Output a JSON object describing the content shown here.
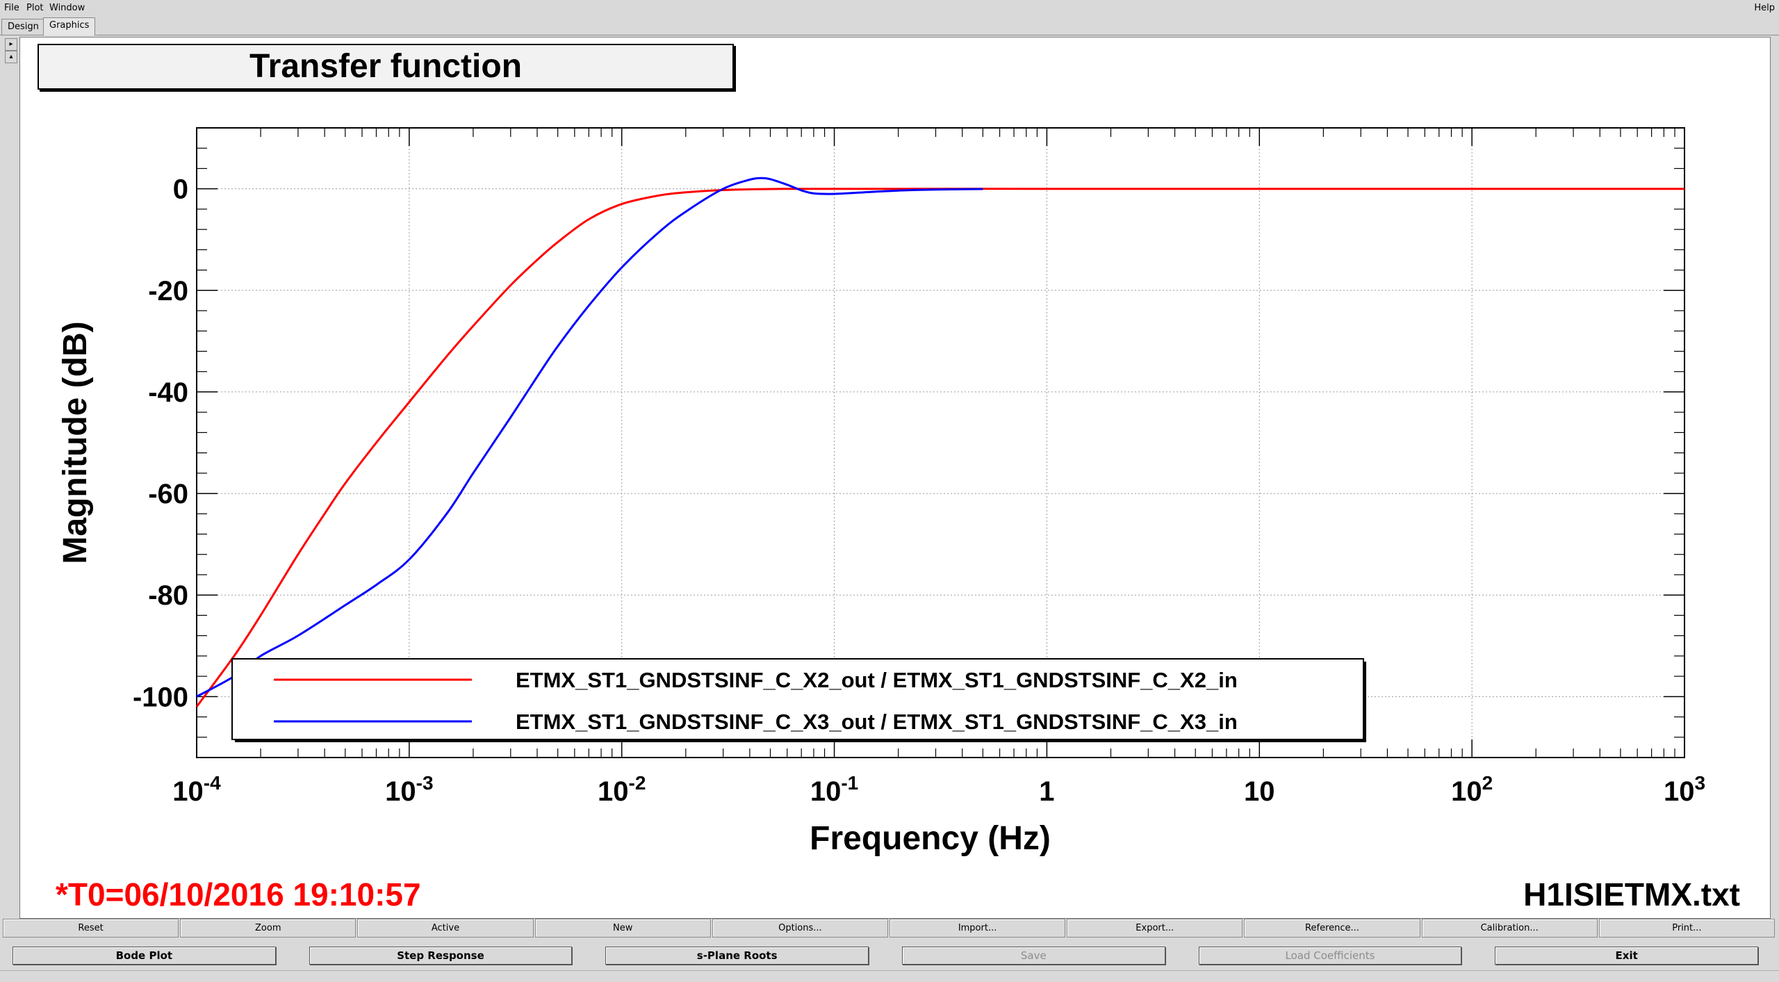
{
  "menu": {
    "file": "File",
    "plot": "Plot",
    "window": "Window",
    "help": "Help"
  },
  "tabs": [
    "Design",
    "Graphics"
  ],
  "active_tab": "Graphics",
  "footer": {
    "t0": "*T0=06/10/2016 19:10:57",
    "filename": "H1ISIETMX.txt"
  },
  "buttons_row1": [
    "Reset",
    "Zoom",
    "Active",
    "New",
    "Options...",
    "Import...",
    "Export...",
    "Reference...",
    "Calibration...",
    "Print..."
  ],
  "buttons_row2": [
    {
      "label": "Bode Plot",
      "enabled": true
    },
    {
      "label": "Step Response",
      "enabled": true
    },
    {
      "label": "s-Plane Roots",
      "enabled": true
    },
    {
      "label": "Save",
      "enabled": false
    },
    {
      "label": "Load Coefficients",
      "enabled": false
    },
    {
      "label": "Exit",
      "enabled": true
    }
  ],
  "chart_data": {
    "type": "line",
    "title": "Transfer function",
    "xlabel": "Frequency (Hz)",
    "ylabel": "Magnitude (dB)",
    "xscale": "log",
    "xlim": [
      0.0001,
      1000
    ],
    "ylim": [
      -112,
      12
    ],
    "x_ticks": [
      {
        "value": 0.0001,
        "base": "10",
        "exp": "-4"
      },
      {
        "value": 0.001,
        "base": "10",
        "exp": "-3"
      },
      {
        "value": 0.01,
        "base": "10",
        "exp": "-2"
      },
      {
        "value": 0.1,
        "base": "10",
        "exp": "-1"
      },
      {
        "value": 1,
        "base": "1",
        "exp": ""
      },
      {
        "value": 10,
        "base": "10",
        "exp": ""
      },
      {
        "value": 100,
        "base": "10",
        "exp": "2"
      },
      {
        "value": 1000,
        "base": "10",
        "exp": "3"
      }
    ],
    "y_ticks": [
      0,
      -20,
      -40,
      -60,
      -80,
      -100
    ],
    "grid": true,
    "legend_position": "bottom-left",
    "series": [
      {
        "name": "ETMX_ST1_GNDSTSINF_C_X2_out / ETMX_ST1_GNDSTSINF_C_X2_in",
        "color": "#ff0000",
        "x": [
          0.0001,
          0.00015,
          0.0002,
          0.0003,
          0.0004,
          0.0005,
          0.0007,
          0.001,
          0.0015,
          0.002,
          0.003,
          0.004,
          0.005,
          0.007,
          0.01,
          0.015,
          0.02,
          0.03,
          0.05,
          0.1,
          1,
          10,
          100,
          1000
        ],
        "y": [
          -102,
          -92,
          -84,
          -72,
          -64,
          -58,
          -50,
          -42,
          -33,
          -27,
          -19,
          -14,
          -10.5,
          -6,
          -3,
          -1.3,
          -0.7,
          -0.25,
          -0.05,
          0,
          0,
          0,
          0,
          0
        ]
      },
      {
        "name": "ETMX_ST1_GNDSTSINF_C_X3_out / ETMX_ST1_GNDSTSINF_C_X3_in",
        "color": "#0000ff",
        "x": [
          0.0001,
          0.00015,
          0.0002,
          0.0003,
          0.0005,
          0.0007,
          0.001,
          0.0015,
          0.002,
          0.003,
          0.004,
          0.005,
          0.007,
          0.01,
          0.015,
          0.02,
          0.03,
          0.04,
          0.045,
          0.05,
          0.06,
          0.07,
          0.08,
          0.1,
          0.15,
          0.2,
          0.3,
          0.5
        ],
        "y": [
          -100,
          -96,
          -92,
          -88,
          -82,
          -78,
          -73,
          -64,
          -56,
          -45,
          -37,
          -31,
          -23,
          -15.5,
          -8.5,
          -4.5,
          0,
          1.8,
          2.1,
          1.9,
          0.8,
          -0.3,
          -0.9,
          -1,
          -0.6,
          -0.35,
          -0.15,
          -0.05
        ]
      }
    ]
  }
}
